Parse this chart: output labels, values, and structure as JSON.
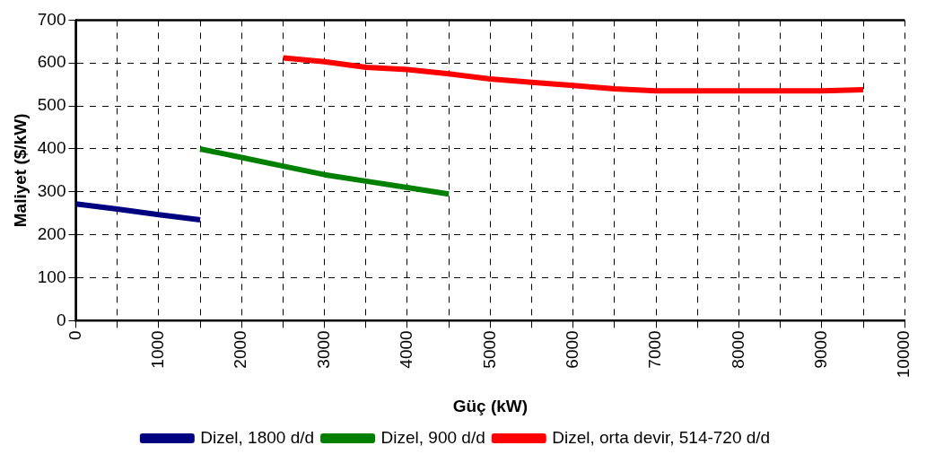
{
  "chart_data": {
    "type": "line",
    "xlabel": "Güç (kW)",
    "ylabel": "Maliyet ($/kW)",
    "xlim": [
      0,
      10000
    ],
    "xticks": [
      0,
      {
        "value": 500,
        "label": null
      },
      1000,
      {
        "value": 1500,
        "label": null
      },
      2000,
      {
        "value": 2500,
        "label": null
      },
      3000,
      {
        "value": 3500,
        "label": null
      },
      4000,
      {
        "value": 4500,
        "label": null
      },
      5000,
      {
        "value": 5500,
        "label": null
      },
      6000,
      {
        "value": 6500,
        "label": null
      },
      7000,
      {
        "value": 7500,
        "label": null
      },
      8000,
      {
        "value": 8500,
        "label": null
      },
      9000,
      {
        "value": 9500,
        "label": null
      },
      10000
    ],
    "ylim": [
      0,
      700
    ],
    "yticks": [
      0,
      100,
      200,
      300,
      400,
      500,
      600,
      700
    ],
    "grid": true,
    "legend": "bottom",
    "marker": "none",
    "line_style": "solid",
    "series": [
      {
        "name": "Dizel, 1800 d/d",
        "color": "#000080",
        "x": [
          0,
          500,
          1000,
          1500
        ],
        "values": [
          272,
          260,
          247,
          235
        ]
      },
      {
        "name": "Dizel, 900 d/d",
        "color": "#008000",
        "x": [
          1500,
          2000,
          2500,
          3000,
          3500,
          4000,
          4500
        ],
        "values": [
          400,
          380,
          360,
          340,
          325,
          310,
          295
        ]
      },
      {
        "name": "Dizel, orta devir, 514-720 d/d",
        "color": "#ff0000",
        "x": [
          2500,
          3000,
          3500,
          4000,
          4500,
          5000,
          5500,
          6000,
          6500,
          7000,
          7500,
          8000,
          8500,
          9000,
          9500
        ],
        "values": [
          612,
          603,
          590,
          585,
          575,
          563,
          555,
          548,
          540,
          535,
          535,
          535,
          535,
          535,
          538
        ]
      }
    ]
  }
}
